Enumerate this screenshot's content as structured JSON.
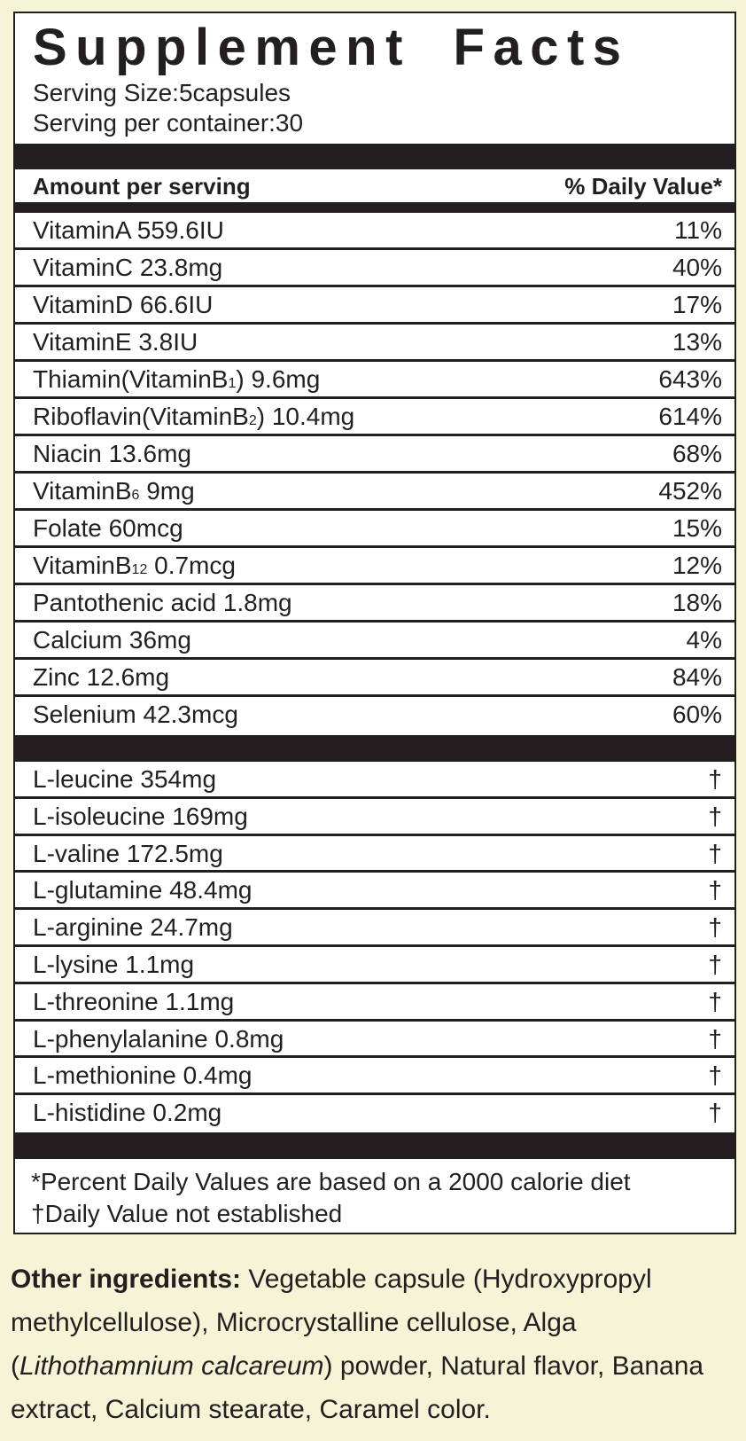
{
  "title": "Supplement Facts",
  "serving_size": "Serving Size:5capsules",
  "servings_per_container": "Serving per container:30",
  "header": {
    "amount": "Amount per serving",
    "dv": "% Daily Value*"
  },
  "vitamins": [
    {
      "label": "VitaminA 559.6IU",
      "sub": "",
      "after": "",
      "dv": "11%"
    },
    {
      "label": "VitaminC 23.8mg",
      "sub": "",
      "after": "",
      "dv": "40%"
    },
    {
      "label": "VitaminD 66.6IU",
      "sub": "",
      "after": "",
      "dv": "17%"
    },
    {
      "label": "VitaminE 3.8IU",
      "sub": "",
      "after": "",
      "dv": "13%"
    },
    {
      "label": "Thiamin(VitaminB",
      "sub": "1",
      "after": ") 9.6mg",
      "dv": "643%"
    },
    {
      "label": "Riboflavin(VitaminB",
      "sub": "2",
      "after": ") 10.4mg",
      "dv": "614%"
    },
    {
      "label": "Niacin 13.6mg",
      "sub": "",
      "after": "",
      "dv": "68%"
    },
    {
      "label": "VitaminB",
      "sub": "6",
      "after": " 9mg",
      "dv": "452%"
    },
    {
      "label": "Folate 60mcg",
      "sub": "",
      "after": "",
      "dv": "15%"
    },
    {
      "label": "VitaminB",
      "sub": "12",
      "after": " 0.7mcg",
      "dv": "12%"
    },
    {
      "label": "Pantothenic acid 1.8mg",
      "sub": "",
      "after": "",
      "dv": "18%"
    },
    {
      "label": "Calcium 36mg",
      "sub": "",
      "after": "",
      "dv": "4%"
    },
    {
      "label": "Zinc 12.6mg",
      "sub": "",
      "after": "",
      "dv": "84%"
    },
    {
      "label": "Selenium 42.3mcg",
      "sub": "",
      "after": "",
      "dv": "60%"
    }
  ],
  "amino_acids": [
    {
      "label": "L-leucine 354mg",
      "dv": "†"
    },
    {
      "label": "L-isoleucine 169mg",
      "dv": "†"
    },
    {
      "label": "L-valine 172.5mg",
      "dv": "†"
    },
    {
      "label": "L-glutamine 48.4mg",
      "dv": "†"
    },
    {
      "label": "L-arginine 24.7mg",
      "dv": "†"
    },
    {
      "label": "L-lysine 1.1mg",
      "dv": "†"
    },
    {
      "label": "L-threonine 1.1mg",
      "dv": "†"
    },
    {
      "label": "L-phenylalanine 0.8mg",
      "dv": "†"
    },
    {
      "label": "L-methionine 0.4mg",
      "dv": "†"
    },
    {
      "label": "L-histidine 0.2mg",
      "dv": "†"
    }
  ],
  "footnotes": [
    "*Percent Daily Values are based on a 2000 calorie diet",
    "†Daily Value not established"
  ],
  "other_ingredients": {
    "label": "Other ingredients:",
    "text1": " Vegetable capsule (Hydroxypropyl methylcellulose), Microcrystalline cellulose, Alga (",
    "italic": "Lithothamnium calcareum",
    "text2": ") powder, Natural flavor, Banana extract, Calcium stearate, Caramel color."
  },
  "colors": {
    "background": "#f3f5d6",
    "ink": "#231f20",
    "panel": "#ffffff"
  }
}
